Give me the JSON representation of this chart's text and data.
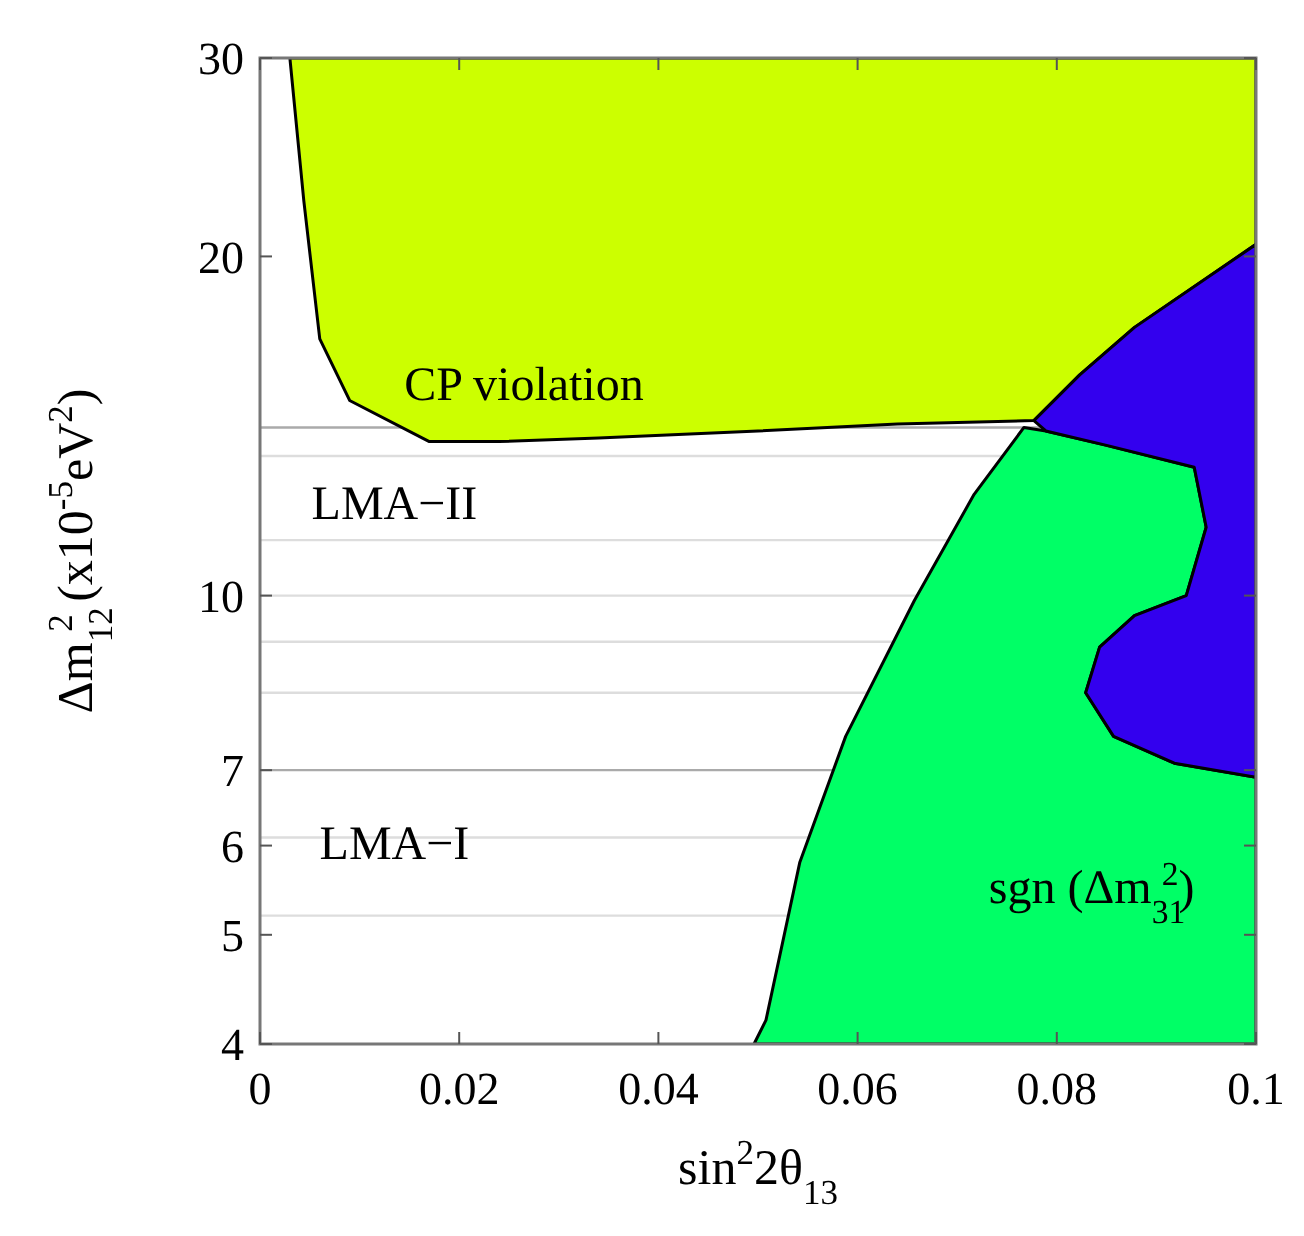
{
  "chart_data": {
    "type": "area",
    "xlabel": "sin$^{2}$2θ$_{13}$",
    "ylabel": "Δm$_{12}$$^{2}$ (x10$^{-5}$eV$^{2}$)",
    "log": "y",
    "xlim": [
      0,
      0.1
    ],
    "ylim": [
      4,
      30
    ],
    "xticks": [
      0,
      0.02,
      0.04,
      0.06,
      0.08,
      0.1
    ],
    "yticks": [
      4,
      5,
      6,
      7,
      10,
      20,
      30
    ],
    "ref_lines": [
      {
        "axis": "y",
        "value": 5.2,
        "color": "#dddddd"
      },
      {
        "axis": "y",
        "value": 6.1,
        "color": "#dddddd"
      },
      {
        "axis": "y",
        "value": 7,
        "color": "#aaaaaa"
      },
      {
        "axis": "y",
        "value": 8.2,
        "color": "#dddddd"
      },
      {
        "axis": "y",
        "value": 9.1,
        "color": "#dddddd"
      },
      {
        "axis": "y",
        "value": 10,
        "color": "#dddddd"
      },
      {
        "axis": "y",
        "value": 11.2,
        "color": "#dddddd"
      },
      {
        "axis": "y",
        "value": 13.3,
        "color": "#dddddd"
      },
      {
        "axis": "y",
        "value": 14.1,
        "color": "#aaaaaa"
      }
    ],
    "series": [
      {
        "color": "#ccff00",
        "x": [
          0.003,
          0.0044,
          0.006,
          0.009,
          0.017,
          0.024,
          0.034,
          0.05,
          0.064,
          0.0777,
          0.0823,
          0.0878,
          0.1,
          0.1
        ],
        "values": [
          30,
          22.4,
          16.9,
          14.9,
          13.7,
          13.7,
          13.8,
          14.0,
          14.2,
          14.3,
          15.7,
          17.3,
          20.5,
          30
        ]
      },
      {
        "color": "#00ff66",
        "x": [
          0.0496,
          0.0508,
          0.0542,
          0.0588,
          0.0657,
          0.0717,
          0.0767,
          0.0789,
          0.0849,
          0.0938,
          0.095,
          0.093,
          0.0878,
          0.0843,
          0.0829,
          0.0857,
          0.0918,
          0.1,
          0.1
        ],
        "values": [
          4,
          4.2,
          5.8,
          7.5,
          9.9,
          12.3,
          14.1,
          14.0,
          13.6,
          13.0,
          11.5,
          10.0,
          9.6,
          9.0,
          8.2,
          7.5,
          7.1,
          6.9,
          4
        ]
      },
      {
        "color": "#3300ee",
        "x": [
          0.0777,
          0.0823,
          0.0878,
          0.1,
          0.1,
          0.0918,
          0.0857,
          0.0829,
          0.0843,
          0.0878,
          0.093,
          0.095,
          0.0938,
          0.0849,
          0.0789
        ],
        "values": [
          14.3,
          15.7,
          17.3,
          20.5,
          6.9,
          7.1,
          7.5,
          8.2,
          9.0,
          9.6,
          10.0,
          11.5,
          13.0,
          13.6,
          14.0
        ]
      }
    ],
    "annotations": [
      "CP violation",
      "LMA−II",
      "LMA−I",
      "sgn (Δm$_{31}$$^{2}$)"
    ]
  }
}
